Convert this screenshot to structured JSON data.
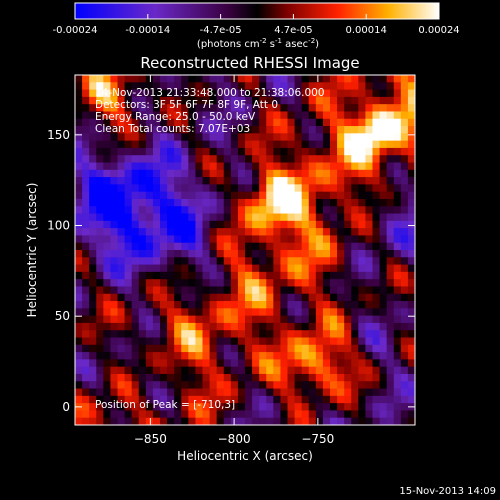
{
  "chart_data": {
    "type": "heatmap",
    "title": "Reconstructed RHESSI Image",
    "xlabel": "Heliocentric X (arcsec)",
    "ylabel": "Heliocentric Y (arcsec)",
    "xlim": [
      -895,
      -692
    ],
    "ylim": [
      -10,
      183
    ],
    "x_ticks": [
      -850,
      -800,
      -750
    ],
    "y_ticks": [
      0,
      50,
      100,
      150
    ],
    "colorbar": {
      "unit_prefix": "(photons cm",
      "unit_exp1": "-2",
      "unit_mid": " s",
      "unit_exp2": "-1",
      "unit_mid2": " asec",
      "unit_exp3": "-2",
      "unit_suffix": ")",
      "tick_labels": [
        "-0.00024",
        "-0.00014",
        "-4.7e-05",
        "4.7e-05",
        "0.00014",
        "0.00024"
      ],
      "range": [
        -0.00024,
        0.00024
      ]
    },
    "annotations": {
      "time_range": "14-Nov-2013 21:33:48.000 to 21:38:06.000",
      "detectors": "Detectors: 3F 5F 6F 7F 8F 9F, Att 0",
      "energy": "Energy Range: 25.0 - 50.0 keV",
      "clean": "Clean    Total counts: 7.07E+03",
      "peak": "Position of Peak = [-710,3]"
    }
  },
  "footer": {
    "date_stamp": "15-Nov-2013 14:09"
  }
}
